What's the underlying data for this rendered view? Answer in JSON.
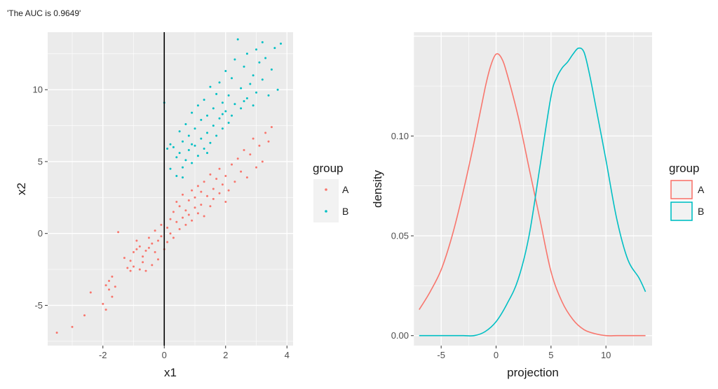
{
  "header": {
    "text": "'The AUC is 0.9649'"
  },
  "colors": {
    "A": "#F8766D",
    "B": "#00BFC4",
    "panel": "#EBEBEB",
    "grid": "#FFFFFF"
  },
  "chart_data": [
    {
      "type": "scatter",
      "xlabel": "x1",
      "ylabel": "x2",
      "xlim": [
        -3.8,
        4.2
      ],
      "ylim": [
        -7.8,
        14.0
      ],
      "x_ticks": [
        -2,
        0,
        2,
        4
      ],
      "y_ticks": [
        -5,
        0,
        5,
        10
      ],
      "vline_x": 0,
      "legend": {
        "title": "group",
        "entries": [
          "A",
          "B"
        ],
        "placement": "right"
      },
      "series": [
        {
          "name": "A",
          "points": [
            [
              -3.5,
              -6.9
            ],
            [
              -3.0,
              -6.5
            ],
            [
              -2.6,
              -5.7
            ],
            [
              -2.4,
              -4.1
            ],
            [
              -2.0,
              -4.9
            ],
            [
              -1.9,
              -5.3
            ],
            [
              -1.9,
              -3.6
            ],
            [
              -1.8,
              -3.3
            ],
            [
              -1.8,
              -3.9
            ],
            [
              -1.7,
              -4.4
            ],
            [
              -1.7,
              -3.0
            ],
            [
              -1.6,
              -3.7
            ],
            [
              -1.5,
              0.1
            ],
            [
              -1.3,
              -1.7
            ],
            [
              -1.2,
              -2.4
            ],
            [
              -1.1,
              -1.9
            ],
            [
              -1.1,
              -2.6
            ],
            [
              -1.0,
              -1.3
            ],
            [
              -1.0,
              -2.3
            ],
            [
              -0.9,
              -0.5
            ],
            [
              -0.9,
              -1.1
            ],
            [
              -0.8,
              -2.5
            ],
            [
              -0.8,
              -0.9
            ],
            [
              -0.7,
              -2.0
            ],
            [
              -0.7,
              -1.6
            ],
            [
              -0.6,
              -1.2
            ],
            [
              -0.6,
              -2.6
            ],
            [
              -0.5,
              -0.3
            ],
            [
              -0.5,
              -1.0
            ],
            [
              -0.4,
              -2.2
            ],
            [
              -0.4,
              -0.7
            ],
            [
              -0.3,
              0.2
            ],
            [
              -0.3,
              -1.3
            ],
            [
              -0.2,
              -0.5
            ],
            [
              -0.2,
              -1.8
            ],
            [
              -0.1,
              0.6
            ],
            [
              -0.1,
              -0.2
            ],
            [
              0.0,
              -1.1
            ],
            [
              0.1,
              0.4
            ],
            [
              0.1,
              -0.6
            ],
            [
              0.2,
              1.0
            ],
            [
              0.2,
              0.0
            ],
            [
              0.3,
              1.5
            ],
            [
              0.3,
              -0.3
            ],
            [
              0.4,
              0.8
            ],
            [
              0.4,
              2.2
            ],
            [
              0.5,
              0.3
            ],
            [
              0.5,
              1.9
            ],
            [
              0.6,
              1.1
            ],
            [
              0.6,
              2.7
            ],
            [
              0.7,
              0.6
            ],
            [
              0.7,
              1.6
            ],
            [
              0.8,
              2.3
            ],
            [
              0.8,
              1.3
            ],
            [
              0.9,
              3.0
            ],
            [
              0.9,
              0.9
            ],
            [
              1.0,
              1.8
            ],
            [
              1.0,
              2.5
            ],
            [
              1.1,
              1.4
            ],
            [
              1.1,
              3.3
            ],
            [
              1.2,
              2.0
            ],
            [
              1.2,
              2.9
            ],
            [
              1.3,
              1.2
            ],
            [
              1.3,
              3.6
            ],
            [
              1.4,
              2.6
            ],
            [
              1.5,
              1.9
            ],
            [
              1.5,
              4.1
            ],
            [
              1.6,
              3.1
            ],
            [
              1.6,
              2.4
            ],
            [
              1.7,
              3.8
            ],
            [
              1.8,
              2.8
            ],
            [
              1.8,
              4.5
            ],
            [
              1.9,
              3.4
            ],
            [
              2.0,
              2.2
            ],
            [
              2.0,
              4.0
            ],
            [
              2.1,
              3.0
            ],
            [
              2.2,
              4.8
            ],
            [
              2.3,
              3.6
            ],
            [
              2.4,
              5.2
            ],
            [
              2.5,
              4.3
            ],
            [
              2.6,
              5.8
            ],
            [
              2.7,
              3.9
            ],
            [
              2.8,
              5.5
            ],
            [
              2.9,
              6.6
            ],
            [
              3.0,
              4.6
            ],
            [
              3.1,
              6.1
            ],
            [
              3.2,
              5.0
            ],
            [
              3.3,
              7.0
            ],
            [
              3.4,
              6.4
            ],
            [
              3.5,
              7.4
            ]
          ]
        },
        {
          "name": "B",
          "points": [
            [
              0.0,
              9.1
            ],
            [
              0.1,
              5.9
            ],
            [
              0.2,
              6.2
            ],
            [
              0.2,
              4.5
            ],
            [
              0.3,
              6.0
            ],
            [
              0.4,
              5.3
            ],
            [
              0.4,
              4.0
            ],
            [
              0.5,
              7.1
            ],
            [
              0.5,
              5.6
            ],
            [
              0.6,
              6.4
            ],
            [
              0.6,
              4.6
            ],
            [
              0.7,
              5.1
            ],
            [
              0.7,
              7.6
            ],
            [
              0.8,
              6.8
            ],
            [
              0.8,
              5.8
            ],
            [
              0.9,
              8.4
            ],
            [
              0.9,
              4.9
            ],
            [
              1.0,
              7.3
            ],
            [
              1.0,
              6.1
            ],
            [
              1.1,
              8.9
            ],
            [
              1.1,
              5.4
            ],
            [
              1.2,
              7.9
            ],
            [
              1.2,
              6.6
            ],
            [
              1.3,
              9.3
            ],
            [
              1.3,
              5.9
            ],
            [
              1.4,
              8.2
            ],
            [
              1.4,
              7.0
            ],
            [
              1.5,
              10.2
            ],
            [
              1.5,
              6.3
            ],
            [
              1.6,
              8.7
            ],
            [
              1.6,
              7.5
            ],
            [
              1.7,
              9.7
            ],
            [
              1.7,
              6.8
            ],
            [
              1.8,
              8.0
            ],
            [
              1.8,
              10.5
            ],
            [
              1.9,
              7.3
            ],
            [
              1.9,
              9.1
            ],
            [
              2.0,
              8.5
            ],
            [
              2.0,
              11.3
            ],
            [
              2.1,
              7.7
            ],
            [
              2.1,
              9.6
            ],
            [
              2.2,
              10.8
            ],
            [
              2.2,
              8.2
            ],
            [
              2.3,
              12.1
            ],
            [
              2.3,
              9.0
            ],
            [
              2.4,
              13.5
            ],
            [
              2.5,
              10.1
            ],
            [
              2.5,
              8.7
            ],
            [
              2.6,
              11.6
            ],
            [
              2.7,
              9.4
            ],
            [
              2.7,
              12.5
            ],
            [
              2.8,
              10.4
            ],
            [
              2.9,
              11.0
            ],
            [
              2.9,
              8.9
            ],
            [
              3.0,
              12.8
            ],
            [
              3.0,
              9.8
            ],
            [
              3.1,
              11.9
            ],
            [
              3.2,
              10.7
            ],
            [
              3.2,
              13.3
            ],
            [
              3.3,
              12.2
            ],
            [
              3.4,
              9.6
            ],
            [
              3.5,
              11.4
            ],
            [
              3.6,
              12.9
            ],
            [
              3.7,
              10.0
            ],
            [
              3.8,
              13.2
            ],
            [
              0.6,
              3.9
            ],
            [
              0.9,
              6.2
            ],
            [
              1.4,
              5.6
            ],
            [
              1.9,
              8.3
            ],
            [
              2.6,
              9.2
            ]
          ]
        }
      ]
    },
    {
      "type": "line",
      "xlabel": "projection",
      "ylabel": "density",
      "xlim": [
        -7.5,
        14.2
      ],
      "ylim": [
        -0.005,
        0.152
      ],
      "x_ticks": [
        -5,
        0,
        5,
        10
      ],
      "y_ticks": [
        0.0,
        0.05,
        0.1
      ],
      "y_tick_labels": [
        "0.00",
        "0.05",
        "0.10"
      ],
      "legend": {
        "title": "group",
        "entries": [
          "A",
          "B"
        ],
        "placement": "right"
      },
      "series": [
        {
          "name": "A",
          "x": [
            -7.0,
            -6.0,
            -5.0,
            -4.0,
            -3.0,
            -2.0,
            -1.0,
            -0.5,
            0.0,
            0.5,
            1.0,
            2.0,
            3.0,
            4.0,
            5.0,
            6.0,
            7.0,
            8.0,
            9.0,
            10.0,
            11.0,
            12.0,
            13.6
          ],
          "y": [
            0.013,
            0.022,
            0.033,
            0.05,
            0.072,
            0.097,
            0.124,
            0.135,
            0.141,
            0.139,
            0.131,
            0.11,
            0.084,
            0.058,
            0.032,
            0.017,
            0.008,
            0.003,
            0.001,
            0.0,
            0.0,
            0.0,
            0.0
          ]
        },
        {
          "name": "B",
          "x": [
            -7.0,
            -5.0,
            -3.0,
            -2.0,
            -1.0,
            0.0,
            1.0,
            2.0,
            3.0,
            4.0,
            5.0,
            5.5,
            6.0,
            6.5,
            7.0,
            7.5,
            8.0,
            8.5,
            9.0,
            10.0,
            11.0,
            12.0,
            13.0,
            13.6
          ],
          "y": [
            0.0,
            0.0,
            0.0,
            0.0,
            0.002,
            0.007,
            0.016,
            0.028,
            0.05,
            0.085,
            0.12,
            0.129,
            0.134,
            0.137,
            0.141,
            0.144,
            0.142,
            0.131,
            0.117,
            0.088,
            0.058,
            0.038,
            0.029,
            0.022
          ]
        }
      ]
    }
  ]
}
